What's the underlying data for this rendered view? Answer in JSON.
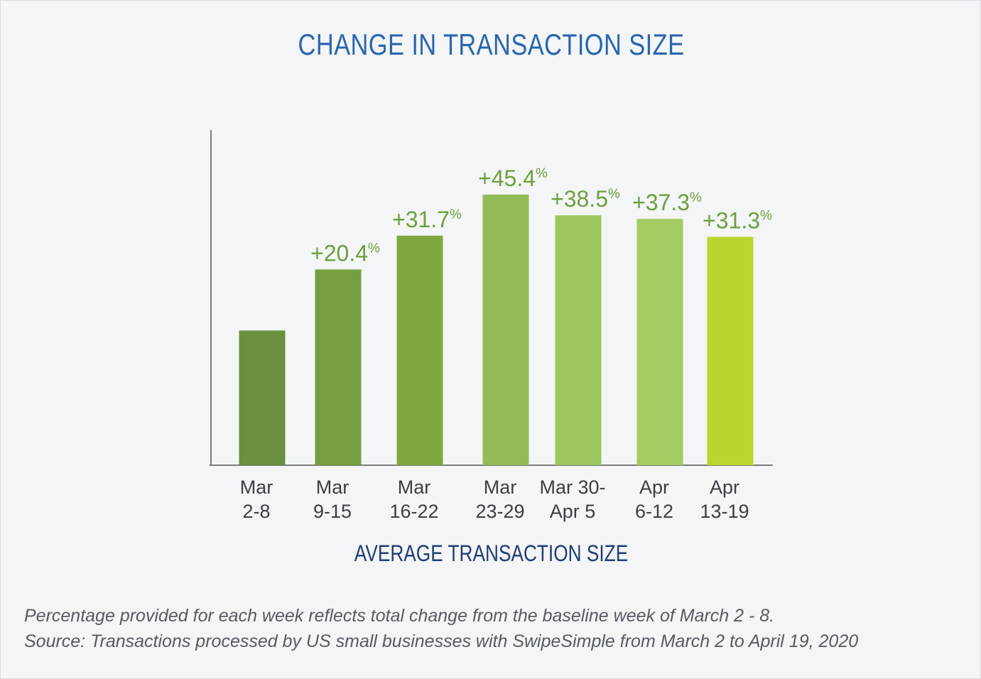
{
  "title": "CHANGE IN TRANSACTION SIZE",
  "footnote": {
    "line1": "Percentage provided for each week reflects total change from the baseline week of March 2 - 8.",
    "line2": "Source: Transactions processed by US small businesses with SwipeSimple from March 2 to April 19, 2020"
  },
  "chart_data": {
    "type": "bar",
    "title": "CHANGE IN TRANSACTION SIZE",
    "xlabel": "AVERAGE TRANSACTION SIZE",
    "ylabel": "",
    "ylim": [
      -45,
      67
    ],
    "grid": false,
    "categories": [
      [
        "Mar",
        "2-8"
      ],
      [
        "Mar",
        "9-15"
      ],
      [
        "Mar",
        "16-22"
      ],
      [
        "Mar",
        "23-29"
      ],
      [
        "Mar 30-",
        "Apr 5"
      ],
      [
        "Apr",
        "6-12"
      ],
      [
        "Apr",
        "13-19"
      ]
    ],
    "values": [
      0,
      20.4,
      31.7,
      45.4,
      38.5,
      37.3,
      31.3
    ],
    "data_labels": [
      "",
      "+20.4",
      "+31.7",
      "+45.4",
      "+38.5",
      "+37.3",
      "+31.3"
    ],
    "data_label_unit": "%",
    "colors": [
      "#6a8f3e",
      "#759f3f",
      "#7ea742",
      "#93bb58",
      "#9cc65f",
      "#a4cc62",
      "#bad530"
    ],
    "label_color": "#6e9f3e",
    "axis_color": "#555555"
  }
}
